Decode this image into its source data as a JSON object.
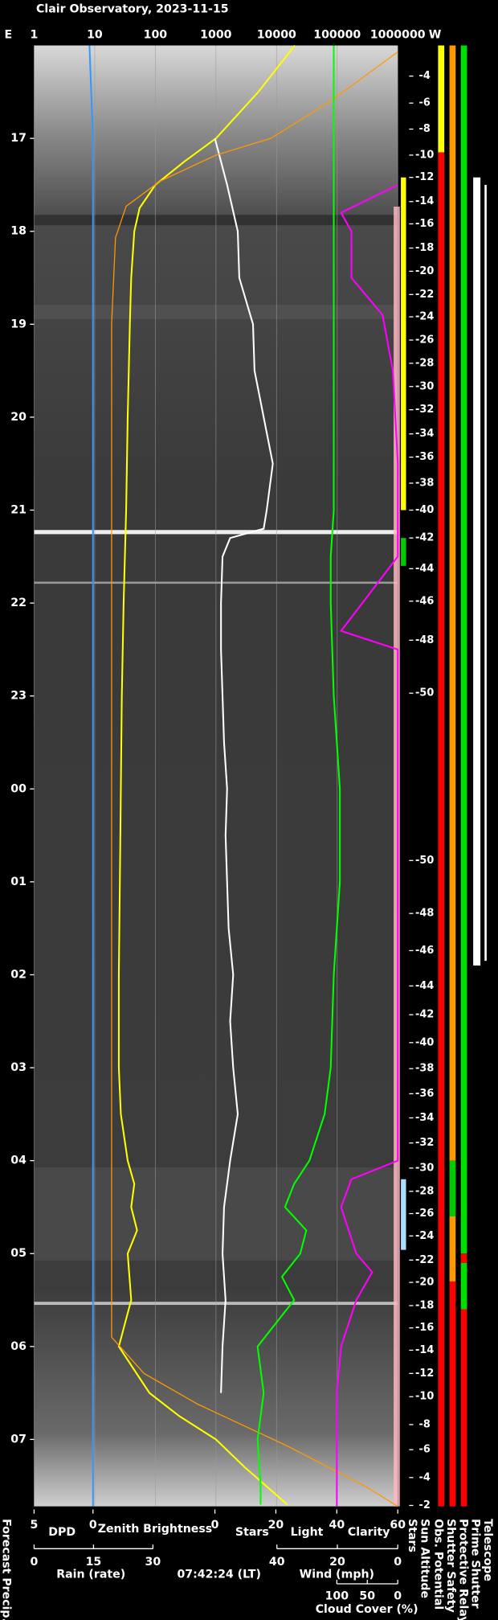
{
  "chart_data": {
    "type": "keogram",
    "title": "Clair Observatory, 2023-11-15",
    "east_label": "E",
    "west_label": "W",
    "timestamp": "07:42:24 (LT)",
    "left_label": "Forecast Precip.",
    "time": {
      "lim": [
        16.0,
        31.72
      ],
      "ticks": [
        17,
        18,
        19,
        20,
        21,
        22,
        23,
        {
          "value": 24,
          "label": "00"
        },
        {
          "value": 25,
          "label": "01"
        },
        {
          "value": 26,
          "label": "02"
        },
        {
          "value": 27,
          "label": "03"
        },
        {
          "value": 28,
          "label": "04"
        },
        {
          "value": 29,
          "label": "05"
        },
        {
          "value": 30,
          "label": "06"
        },
        {
          "value": 31,
          "label": "07"
        }
      ]
    },
    "axes": {
      "top": {
        "log": true,
        "lim": [
          1,
          1000000
        ],
        "ticks": [
          1,
          10,
          100,
          1000,
          10000,
          100000,
          1000000
        ],
        "grid": true
      },
      "dpd": {
        "lim": [
          5,
          0
        ],
        "ticks": [
          5,
          0
        ]
      },
      "stars": {
        "lim": [
          0,
          60
        ],
        "ticks": [
          0,
          20,
          40,
          60
        ]
      },
      "rain": {
        "label": "Rain (rate)",
        "color": "#33ccff",
        "lim": [
          0,
          30
        ],
        "ticks": [
          0,
          15,
          30
        ]
      },
      "wind": {
        "label": "Wind (mph)",
        "color": "#ffaaaa",
        "lim": [
          40,
          0
        ],
        "ticks": [
          40,
          20,
          0
        ]
      },
      "cloud": {
        "lim": [
          100,
          0
        ],
        "ticks": [
          100,
          50,
          0
        ]
      }
    },
    "series": [
      {
        "name": "DPD",
        "color": "#3399ff",
        "axis": "dpd",
        "x": [
          16.0,
          17.0,
          31.72
        ],
        "values": [
          0.3,
          0,
          0
        ]
      },
      {
        "name": "Zenith Brightness",
        "color": "#ffff00",
        "axis": "top",
        "x": [
          16.0,
          16.5,
          17.0,
          17.25,
          17.5,
          17.75,
          18.0,
          18.5,
          19.0,
          20.0,
          21.0,
          22.0,
          23.0,
          24.0,
          25.0,
          26.0,
          27.0,
          27.5,
          28.0,
          28.25,
          28.5,
          28.75,
          29.0,
          29.5,
          30.0,
          30.5,
          30.75,
          31.0,
          31.3,
          31.7
        ],
        "values": [
          20000,
          5000,
          1000,
          300,
          100,
          55,
          45,
          40,
          38,
          35,
          33,
          30,
          28,
          27,
          26,
          25,
          25,
          27,
          35,
          45,
          40,
          50,
          35,
          40,
          25,
          80,
          250,
          1000,
          3000,
          15000
        ]
      },
      {
        "name": "Stars",
        "color": "#ffffff",
        "axis": "stars",
        "x": [
          17.0,
          17.5,
          18.0,
          18.5,
          19.0,
          19.5,
          20.0,
          20.5,
          21.0,
          21.2,
          21.3,
          21.5,
          22.0,
          22.5,
          23.0,
          23.5,
          24.0,
          24.5,
          25.0,
          25.5,
          26.0,
          26.5,
          27.0,
          27.5,
          28.0,
          28.5,
          29.0,
          29.5,
          30.0,
          30.5
        ],
        "values": [
          0,
          4,
          7.5,
          8,
          12.5,
          13,
          16,
          19,
          17,
          16,
          5,
          2.5,
          2,
          2,
          2.5,
          3,
          4,
          3.5,
          4,
          4.5,
          6,
          5,
          6,
          7.5,
          5,
          3,
          2.5,
          3.5,
          2.5,
          2
        ]
      },
      {
        "name": "Light",
        "color": "#ff9900",
        "axis": "top",
        "x": [
          16.07,
          16.62,
          17.0,
          17.18,
          17.46,
          17.73,
          18.07,
          19.0,
          24.0,
          29.9,
          30.29,
          30.62,
          31.07,
          31.51,
          31.72
        ],
        "values": [
          1000000,
          70000,
          8000,
          1000,
          120,
          33,
          22,
          19,
          19,
          19,
          65,
          500,
          15000,
          300000,
          1000000
        ]
      },
      {
        "name": "Clarity",
        "color": "#00ff00",
        "axis": "stars",
        "x": [
          16.0,
          17.0,
          18.0,
          19.0,
          20.0,
          21.0,
          21.5,
          22.0,
          23.0,
          24.0,
          25.0,
          26.0,
          27.0,
          27.5,
          28.0,
          28.25,
          28.5,
          28.75,
          29.0,
          29.25,
          29.5,
          30.0,
          30.5,
          31.0,
          31.5,
          31.7
        ],
        "values": [
          39,
          39,
          39,
          39,
          39,
          39,
          38,
          38,
          39,
          41,
          41,
          39,
          38,
          36,
          31,
          26,
          23,
          30,
          28,
          22,
          26,
          14,
          16,
          14,
          15,
          15
        ]
      },
      {
        "name": "Cloud Cover (%)",
        "color": "#ff00ff",
        "axis": "cloud",
        "x": [
          16.0,
          17.5,
          17.8,
          18.0,
          18.5,
          18.9,
          19.5,
          20.5,
          21.5,
          22.3,
          22.5,
          28.0,
          28.2,
          28.5,
          29.0,
          29.2,
          29.5,
          30.0,
          30.5,
          31.72
        ],
        "values": [
          null,
          0,
          93,
          76,
          76,
          25,
          8,
          0,
          0,
          93,
          0,
          0,
          76,
          93,
          68,
          42,
          68,
          93,
          100,
          100
        ]
      }
    ],
    "sun_altitude": {
      "label": "Sun Altitude",
      "times": [
        16.33,
        16.62,
        16.9,
        17.18,
        17.42,
        17.68,
        17.92,
        18.18,
        18.43,
        18.68,
        18.92,
        19.17,
        19.42,
        19.67,
        19.92,
        20.18,
        20.43,
        20.71,
        21.0,
        21.3,
        21.63,
        21.98,
        22.4,
        22.97,
        24.77,
        25.34,
        25.74,
        26.12,
        26.43,
        26.73,
        27.01,
        27.28,
        27.54,
        27.81,
        28.08,
        28.33,
        28.57,
        28.81,
        29.07,
        29.31,
        29.56,
        29.8,
        30.04,
        30.29,
        30.54,
        30.84,
        31.11,
        31.41,
        31.71
      ],
      "values": [
        -4,
        -6,
        -8,
        -10,
        -12,
        -14,
        -16,
        -18,
        -20,
        -22,
        -24,
        -26,
        -28,
        -30,
        -32,
        -34,
        -36,
        -38,
        -40,
        -42,
        -44,
        -46,
        -48,
        -50,
        -50,
        -48,
        -46,
        -44,
        -42,
        -40,
        -38,
        -36,
        -34,
        -32,
        -30,
        -28,
        -26,
        -24,
        -22,
        -20,
        -18,
        -16,
        -14,
        -12,
        -10,
        -8,
        -6,
        -4,
        -2
      ]
    },
    "strips": [
      {
        "label": "Stars",
        "segments": [
          {
            "start": 17.42,
            "end": 21.0,
            "color": "#ffff00"
          },
          {
            "start": 21.3,
            "end": 21.6,
            "color": "#00cc00"
          },
          {
            "start": 28.2,
            "end": 28.96,
            "color": "#aaddff"
          }
        ]
      },
      {
        "label": "Obs. Potential",
        "segments": [
          {
            "start": 16.0,
            "end": 17.15,
            "color": "#ffff00"
          },
          {
            "start": 17.15,
            "end": 31.72,
            "color": "#ff0000"
          }
        ]
      },
      {
        "label": "Shutter Safety",
        "segments": [
          {
            "start": 16.0,
            "end": 28.0,
            "color": "#ff9900"
          },
          {
            "start": 28.0,
            "end": 28.6,
            "color": "#00cc00"
          },
          {
            "start": 28.6,
            "end": 29.3,
            "color": "#ff9900"
          },
          {
            "start": 29.3,
            "end": 31.72,
            "color": "#ff0000"
          }
        ]
      },
      {
        "label": "Protective Relay",
        "segments": [
          {
            "start": 16.0,
            "end": 29.0,
            "color": "#00dd00"
          },
          {
            "start": 29.0,
            "end": 29.1,
            "color": "#ff0000"
          },
          {
            "start": 29.1,
            "end": 29.6,
            "color": "#00dd00"
          },
          {
            "start": 29.6,
            "end": 31.72,
            "color": "#ff0000"
          }
        ]
      },
      {
        "label": "Prime Shutter",
        "segments": [
          {
            "start": 17.42,
            "end": 25.9,
            "color": "#ffffff"
          }
        ]
      },
      {
        "label": "Telescope",
        "segments": [
          {
            "start": 17.5,
            "end": 25.85,
            "color": "#ffffff"
          }
        ]
      }
    ]
  }
}
